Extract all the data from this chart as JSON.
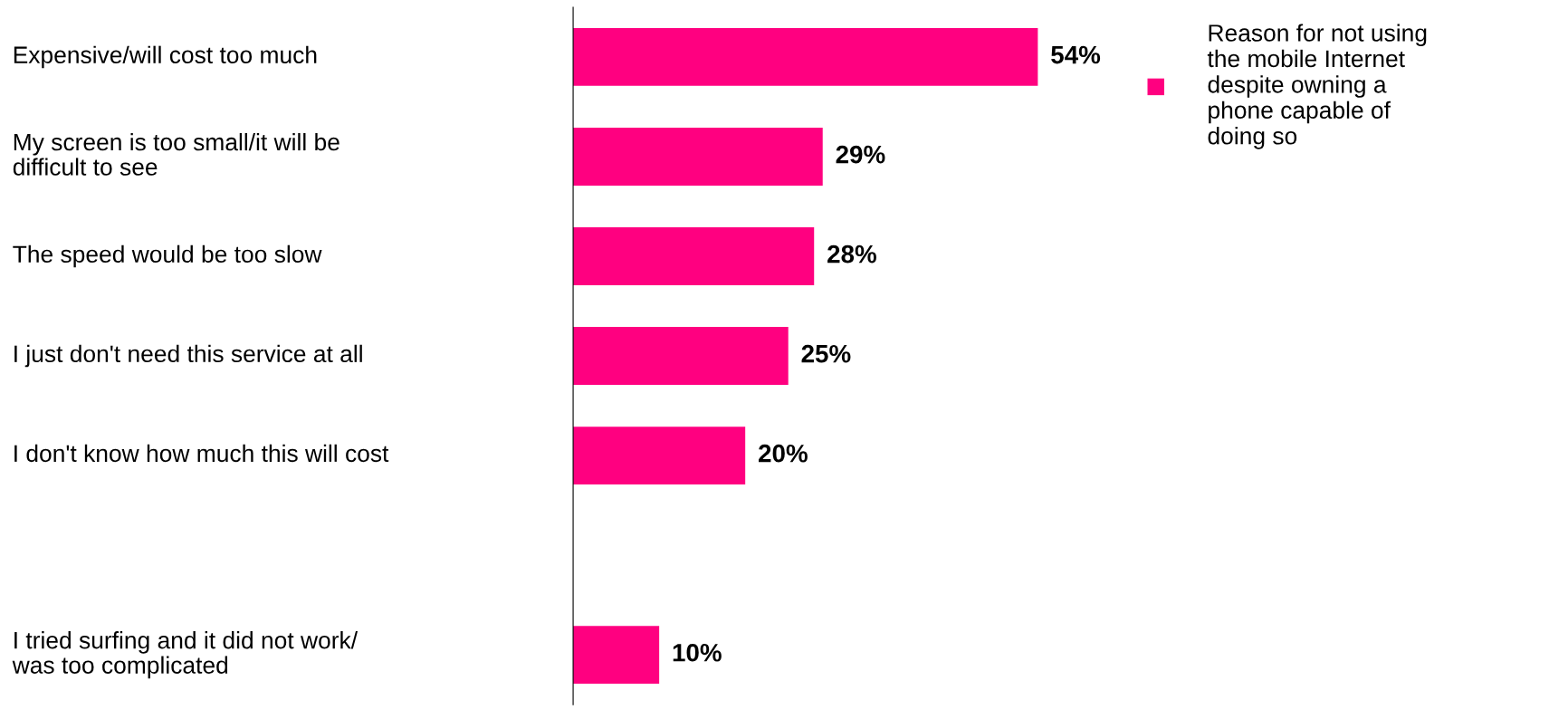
{
  "chart_data": {
    "type": "bar",
    "orientation": "horizontal",
    "categories": [
      "Expensive/will cost too much",
      "My screen is too small/it will be\ndifficult to see",
      "The speed would be too slow",
      "I just don't need this service at all",
      "I don't know how much this will cost",
      null,
      "I tried surfing and it did not work/\nwas too complicated"
    ],
    "series": [
      {
        "name": "Reason for not using\nthe mobile Internet\ndespite owning a\nphone capable of\ndoing so",
        "color": "#ff0080",
        "values": [
          54,
          29,
          28,
          25,
          20,
          null,
          10
        ],
        "value_labels": [
          "54%",
          "29%",
          "28%",
          "25%",
          "20%",
          null,
          "10%"
        ]
      }
    ],
    "legend": "top right",
    "tick_labels": "y"
  }
}
